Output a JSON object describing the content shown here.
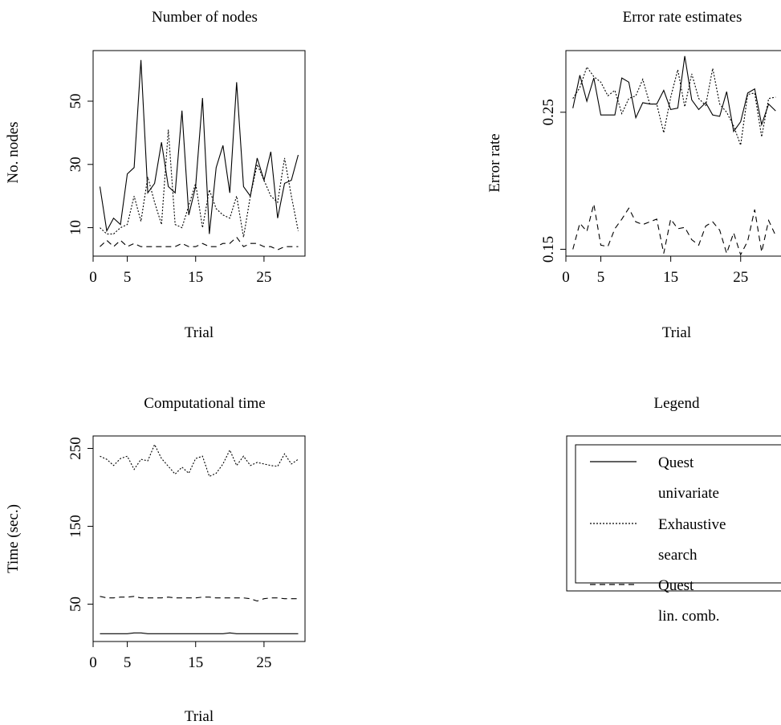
{
  "chart_data": [
    {
      "id": "nodes",
      "type": "line",
      "title": "Number of nodes",
      "xlabel": "Trial",
      "ylabel": "No. nodes",
      "xlim": [
        0,
        31
      ],
      "ylim": [
        1,
        66
      ],
      "xticks": [
        0,
        5,
        15,
        25
      ],
      "xtick_labels": [
        "0",
        "5",
        "15",
        "25"
      ],
      "yticks": [
        10,
        30,
        50
      ],
      "ytick_labels": [
        "10",
        "30",
        "50"
      ],
      "x": [
        1,
        2,
        3,
        4,
        5,
        6,
        7,
        8,
        9,
        10,
        11,
        12,
        13,
        14,
        15,
        16,
        17,
        18,
        19,
        20,
        21,
        22,
        23,
        24,
        25,
        26,
        27,
        28,
        29,
        30
      ],
      "series": [
        {
          "style": "solid",
          "values": [
            23,
            9,
            13,
            11,
            27,
            29,
            63,
            21,
            24,
            37,
            23,
            21,
            47,
            14,
            23,
            51,
            8,
            29,
            36,
            21,
            56,
            23,
            20,
            32,
            25,
            34,
            13,
            24,
            25,
            33
          ]
        },
        {
          "style": "dotted",
          "values": [
            10,
            8,
            8,
            10,
            11,
            20,
            12,
            26,
            18,
            11,
            41,
            11,
            10,
            17,
            24,
            10,
            22,
            16,
            14,
            13,
            20,
            7,
            20,
            30,
            25,
            20,
            18,
            32,
            20,
            9
          ]
        },
        {
          "style": "dashed",
          "values": [
            4,
            6,
            4,
            6,
            4,
            5,
            4,
            4,
            4,
            4,
            4,
            4,
            5,
            4,
            4,
            5,
            4,
            4,
            5,
            5,
            7,
            4,
            5,
            5,
            4,
            4,
            3,
            4,
            4,
            4
          ]
        }
      ]
    },
    {
      "id": "error",
      "type": "line",
      "title": "Error rate estimates",
      "xlabel": "Trial",
      "ylabel": "Error rate",
      "xlim": [
        0,
        31
      ],
      "ylim": [
        0.145,
        0.295
      ],
      "xticks": [
        0,
        5,
        15,
        25
      ],
      "xtick_labels": [
        "0",
        "5",
        "15",
        "25"
      ],
      "yticks": [
        0.15,
        0.25
      ],
      "ytick_labels": [
        "0.15",
        "0.25"
      ],
      "x": [
        1,
        2,
        3,
        4,
        5,
        6,
        7,
        8,
        9,
        10,
        11,
        12,
        13,
        14,
        15,
        16,
        17,
        18,
        19,
        20,
        21,
        22,
        23,
        24,
        25,
        26,
        27,
        28,
        29,
        30
      ],
      "series": [
        {
          "style": "solid",
          "values": [
            0.253,
            0.277,
            0.258,
            0.275,
            0.248,
            0.248,
            0.248,
            0.275,
            0.272,
            0.246,
            0.257,
            0.256,
            0.256,
            0.266,
            0.252,
            0.253,
            0.291,
            0.259,
            0.252,
            0.257,
            0.248,
            0.247,
            0.265,
            0.236,
            0.243,
            0.264,
            0.267,
            0.241,
            0.256,
            0.251
          ]
        },
        {
          "style": "dotted",
          "values": [
            0.26,
            0.268,
            0.283,
            0.276,
            0.272,
            0.262,
            0.266,
            0.249,
            0.26,
            0.262,
            0.274,
            0.256,
            0.256,
            0.235,
            0.261,
            0.281,
            0.254,
            0.278,
            0.26,
            0.255,
            0.282,
            0.256,
            0.25,
            0.24,
            0.226,
            0.263,
            0.264,
            0.232,
            0.26,
            0.261
          ]
        },
        {
          "style": "dashed",
          "values": [
            0.15,
            0.169,
            0.163,
            0.183,
            0.153,
            0.152,
            0.165,
            0.172,
            0.18,
            0.17,
            0.168,
            0.17,
            0.172,
            0.147,
            0.172,
            0.165,
            0.166,
            0.157,
            0.153,
            0.167,
            0.17,
            0.164,
            0.147,
            0.162,
            0.146,
            0.156,
            0.179,
            0.148,
            0.171,
            0.16
          ]
        }
      ]
    },
    {
      "id": "time",
      "type": "line",
      "title": "Computational time",
      "xlabel": "Trial",
      "ylabel": "Time (sec.)",
      "xlim": [
        0,
        31
      ],
      "ylim": [
        2,
        266
      ],
      "xticks": [
        0,
        5,
        15,
        25
      ],
      "xtick_labels": [
        "0",
        "5",
        "15",
        "25"
      ],
      "yticks": [
        50,
        150,
        250
      ],
      "ytick_labels": [
        "50",
        "150",
        "250"
      ],
      "x": [
        1,
        2,
        3,
        4,
        5,
        6,
        7,
        8,
        9,
        10,
        11,
        12,
        13,
        14,
        15,
        16,
        17,
        18,
        19,
        20,
        21,
        22,
        23,
        24,
        25,
        26,
        27,
        28,
        29,
        30
      ],
      "series": [
        {
          "style": "solid",
          "values": [
            12,
            12,
            12,
            12,
            12,
            13,
            13,
            12,
            12,
            12,
            12,
            12,
            12,
            12,
            12,
            12,
            12,
            12,
            12,
            13,
            12,
            12,
            12,
            12,
            12,
            12,
            12,
            12,
            12,
            12
          ]
        },
        {
          "style": "dotted",
          "values": [
            240,
            236,
            228,
            237,
            240,
            223,
            236,
            234,
            255,
            237,
            227,
            217,
            226,
            218,
            237,
            240,
            214,
            218,
            230,
            248,
            228,
            240,
            228,
            232,
            230,
            228,
            227,
            243,
            230,
            236
          ]
        },
        {
          "style": "dashed",
          "values": [
            60,
            58,
            58,
            59,
            59,
            60,
            58,
            58,
            58,
            58,
            59,
            58,
            58,
            58,
            58,
            59,
            59,
            58,
            58,
            58,
            58,
            58,
            57,
            54,
            57,
            58,
            58,
            57,
            57,
            57
          ]
        }
      ]
    }
  ],
  "legend": {
    "title": "Legend",
    "entries": [
      {
        "style": "solid",
        "line1": "Quest",
        "line2": "univariate"
      },
      {
        "style": "dotted",
        "line1": "Exhaustive",
        "line2": "search"
      },
      {
        "style": "dashed",
        "line1": "Quest",
        "line2": "lin. comb."
      }
    ]
  }
}
